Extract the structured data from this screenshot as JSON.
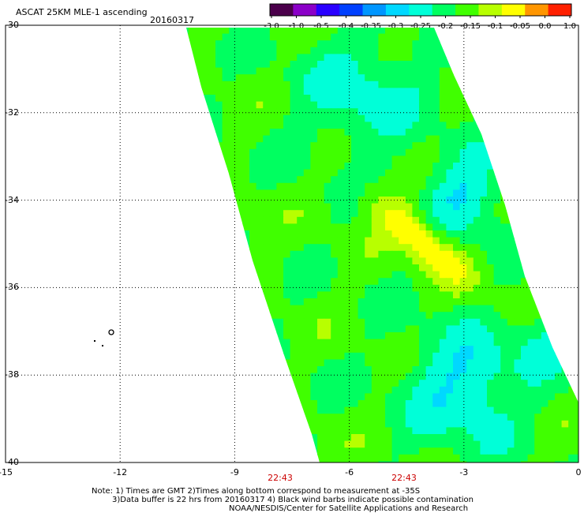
{
  "header": {
    "title": "ASCAT 25KM MLE-1 ascending",
    "date": "20160317"
  },
  "colorbar": {
    "ticks": [
      "-3.0",
      "-1.0",
      "-0.5",
      "-0.4",
      "-0.35",
      "-0.3",
      "-0.25",
      "-0.2",
      "-0.15",
      "-0.1",
      "-0.05",
      "0.0",
      "1.0"
    ],
    "colors": [
      "#4b004b",
      "#8b00c8",
      "#2a00ff",
      "#0040ff",
      "#0096ff",
      "#00d8ff",
      "#00ffd8",
      "#00ff60",
      "#40ff00",
      "#b8ff00",
      "#ffff00",
      "#ff9600",
      "#ff2000"
    ]
  },
  "axes": {
    "y_labels": [
      "-30",
      "-32",
      "-34",
      "-36",
      "-38",
      "-40"
    ],
    "x_labels": [
      "-15",
      "-12",
      "-9",
      "-6",
      "-3",
      "0"
    ],
    "y_range": [
      -40,
      -30
    ],
    "x_range": [
      -15,
      0
    ],
    "grid": "dotted"
  },
  "times": [
    "22:43",
    "22:43"
  ],
  "notes": {
    "line1": "Note: 1) Times are GMT 2)Times along bottom correspond to measurement at -35S",
    "line2": "3)Data buffer is 22 hrs from 20160317 4) Black wind barbs indicate possible contamination",
    "line3": "NOAA/NESDIS/Center for Satellite Applications and Research"
  }
}
